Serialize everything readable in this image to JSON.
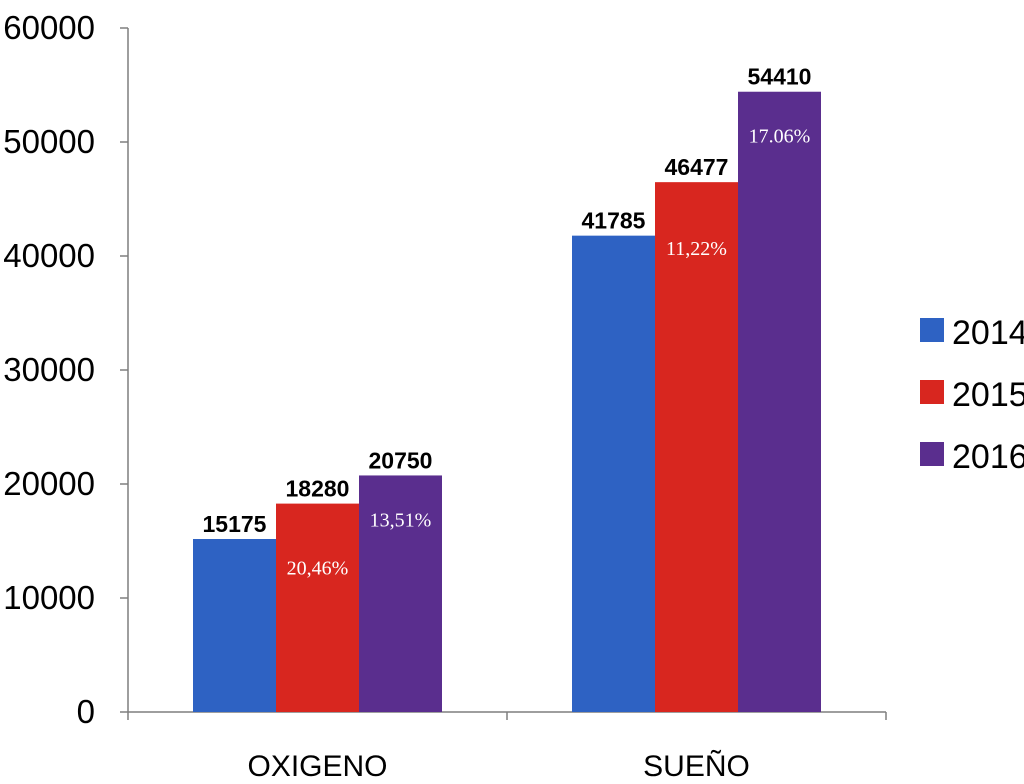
{
  "chart_data": {
    "type": "bar",
    "categories": [
      "OXIGENO",
      "SUEÑO"
    ],
    "series": [
      {
        "name": "2014",
        "color": "#2e62c3",
        "values": [
          15175,
          41785
        ],
        "labels": [
          "15175",
          "41785"
        ],
        "pct_labels": [
          "",
          ""
        ]
      },
      {
        "name": "2015",
        "color": "#d8261f",
        "values": [
          18280,
          46477
        ],
        "labels": [
          "18280",
          "46477"
        ],
        "pct_labels": [
          "20,46%",
          "11,22%"
        ]
      },
      {
        "name": "2016",
        "color": "#5a2e8e",
        "values": [
          20750,
          54410
        ],
        "labels": [
          "20750",
          "54410"
        ],
        "pct_labels": [
          "13,51%",
          "17.06%"
        ]
      }
    ],
    "y_ticks": [
      "0",
      "10000",
      "20000",
      "30000",
      "40000",
      "50000",
      "60000"
    ],
    "ylim": [
      0,
      60000
    ],
    "grid": false,
    "legend_position": "right",
    "title": "",
    "xlabel": "",
    "ylabel": ""
  }
}
